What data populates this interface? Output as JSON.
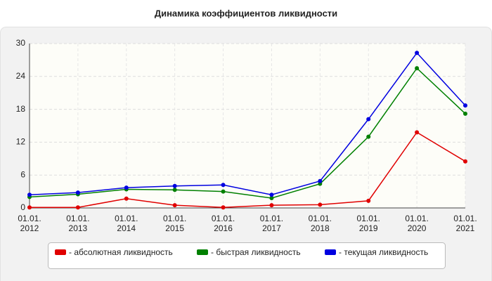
{
  "chart_data": {
    "type": "line",
    "title": "Динамика коэффициентов ликвидности",
    "categories": [
      "01.01.\n2012",
      "01.01.\n2013",
      "01.01.\n2014",
      "01.01.\n2015",
      "01.01.\n2016",
      "01.01.\n2017",
      "01.01.\n2018",
      "01.01.\n2019",
      "01.01.\n2020",
      "01.01.\n2021"
    ],
    "series": [
      {
        "name": "- абсолютная ликвидность",
        "color": "#e00000",
        "values": [
          0.1,
          0.1,
          1.7,
          0.5,
          0.1,
          0.5,
          0.6,
          1.3,
          13.8,
          8.5
        ]
      },
      {
        "name": "- быстрая ликвидность",
        "color": "#008000",
        "values": [
          2.0,
          2.5,
          3.4,
          3.3,
          3.0,
          1.8,
          4.4,
          13.0,
          25.5,
          17.2
        ]
      },
      {
        "name": "- текущая ликвидность",
        "color": "#0000e0",
        "values": [
          2.4,
          2.8,
          3.7,
          4.0,
          4.2,
          2.4,
          4.9,
          16.2,
          28.3,
          18.7
        ]
      }
    ],
    "ylim": [
      0,
      30
    ],
    "yticks": [
      0,
      6,
      12,
      18,
      24,
      30
    ],
    "grid": true,
    "legend": "bottom"
  }
}
